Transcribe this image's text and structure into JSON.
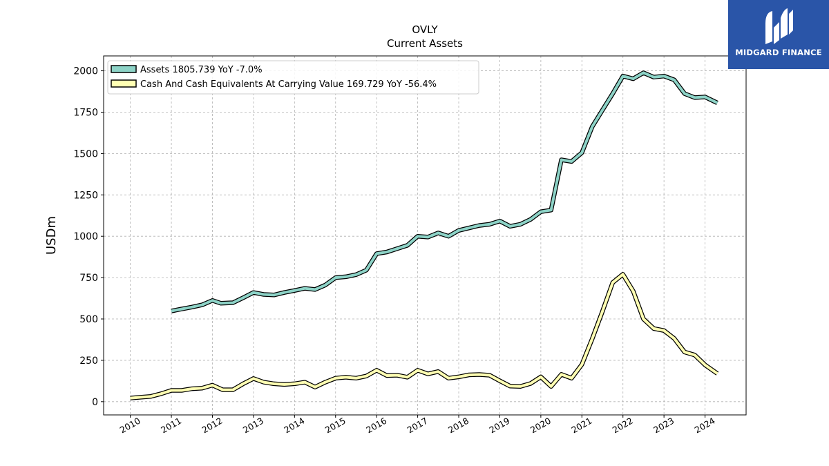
{
  "brand": {
    "name": "MIDGARD FINANCE",
    "bg_color": "#2a55a8"
  },
  "chart_data": {
    "type": "line",
    "title": "OVLY",
    "subtitle": "Current  Assets",
    "xlabel": "",
    "ylabel": "USDm",
    "ylim": [
      -80,
      2090
    ],
    "xlim": [
      2009.35,
      2025.0
    ],
    "yticks": [
      0,
      250,
      500,
      750,
      1000,
      1250,
      1500,
      1750,
      2000
    ],
    "xticks": [
      "2010",
      "2011",
      "2012",
      "2013",
      "2014",
      "2015",
      "2016",
      "2017",
      "2018",
      "2019",
      "2020",
      "2021",
      "2022",
      "2023",
      "2024"
    ],
    "grid": true,
    "legend_position": "top-left",
    "series": [
      {
        "name": "Assets",
        "legend_label": "Assets  1805.739 YoY -7.0%",
        "color": "#8dd3c7",
        "x": [
          2011.0,
          2011.25,
          2011.5,
          2011.75,
          2012.0,
          2012.2,
          2012.5,
          2012.75,
          2013.0,
          2013.25,
          2013.5,
          2013.75,
          2014.0,
          2014.25,
          2014.5,
          2014.75,
          2015.0,
          2015.25,
          2015.5,
          2015.75,
          2016.0,
          2016.25,
          2016.5,
          2016.75,
          2017.0,
          2017.25,
          2017.5,
          2017.75,
          2018.0,
          2018.25,
          2018.5,
          2018.75,
          2019.0,
          2019.25,
          2019.5,
          2019.75,
          2020.0,
          2020.25,
          2020.5,
          2020.75,
          2021.0,
          2021.25,
          2021.5,
          2021.75,
          2022.0,
          2022.25,
          2022.5,
          2022.75,
          2023.0,
          2023.25,
          2023.5,
          2023.75,
          2024.0,
          2024.3
        ],
        "values": [
          548,
          560,
          572,
          585,
          612,
          595,
          598,
          628,
          660,
          648,
          645,
          660,
          672,
          685,
          678,
          705,
          750,
          755,
          768,
          795,
          895,
          905,
          925,
          945,
          1000,
          995,
          1020,
          1000,
          1035,
          1050,
          1065,
          1072,
          1092,
          1060,
          1072,
          1102,
          1148,
          1158,
          1462,
          1452,
          1505,
          1662,
          1762,
          1862,
          1968,
          1952,
          1988,
          1962,
          1968,
          1945,
          1862,
          1838,
          1842,
          1806
        ]
      },
      {
        "name": "Cash And Cash Equivalents At Carrying Value",
        "legend_label": "Cash And Cash Equivalents At Carrying Value  169.729 YoY -56.4%",
        "color": "#ffffb3",
        "x": [
          2010.0,
          2010.25,
          2010.5,
          2010.75,
          2011.0,
          2011.25,
          2011.5,
          2011.75,
          2012.0,
          2012.25,
          2012.5,
          2012.75,
          2013.0,
          2013.25,
          2013.5,
          2013.75,
          2014.0,
          2014.25,
          2014.5,
          2014.75,
          2015.0,
          2015.25,
          2015.5,
          2015.75,
          2016.0,
          2016.25,
          2016.5,
          2016.75,
          2017.0,
          2017.25,
          2017.5,
          2017.75,
          2018.0,
          2018.25,
          2018.5,
          2018.75,
          2019.0,
          2019.25,
          2019.5,
          2019.75,
          2020.0,
          2020.25,
          2020.5,
          2020.75,
          2021.0,
          2021.25,
          2021.5,
          2021.75,
          2022.0,
          2022.25,
          2022.5,
          2022.75,
          2023.0,
          2023.25,
          2023.5,
          2023.75,
          2024.0,
          2024.3
        ],
        "values": [
          22,
          27,
          32,
          48,
          68,
          68,
          78,
          82,
          100,
          72,
          72,
          108,
          140,
          118,
          108,
          104,
          108,
          118,
          88,
          118,
          142,
          148,
          142,
          155,
          190,
          158,
          160,
          148,
          190,
          168,
          182,
          142,
          150,
          162,
          164,
          160,
          126,
          94,
          92,
          110,
          150,
          92,
          165,
          142,
          225,
          380,
          545,
          720,
          770,
          668,
          500,
          442,
          430,
          382,
          300,
          282,
          222,
          170
        ]
      }
    ]
  }
}
